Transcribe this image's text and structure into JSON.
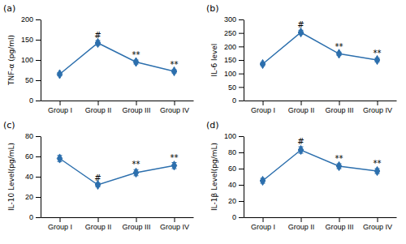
{
  "chart_data": [
    {
      "type": "line",
      "title": "(a)",
      "y_label": "TNF-α (pg/ml)",
      "categories": [
        "Group I",
        "Group II",
        "Group III",
        "Group IV"
      ],
      "values": [
        65,
        142,
        95,
        72
      ],
      "errors": [
        4,
        6,
        5,
        4
      ],
      "annotations": [
        null,
        "#",
        "**",
        "**"
      ],
      "color": "#2c6fad",
      "marker": "diamond",
      "ylim": [
        0,
        200
      ],
      "yticks": [
        0,
        50,
        100,
        150,
        200
      ]
    },
    {
      "type": "line",
      "title": "(b)",
      "y_label": "IL-6 level",
      "categories": [
        "Group I",
        "Group II",
        "Group III",
        "Group IV"
      ],
      "values": [
        135,
        252,
        173,
        150
      ],
      "errors": [
        6,
        8,
        6,
        7
      ],
      "annotations": [
        null,
        "#",
        "**",
        "**"
      ],
      "color": "#2c6fad",
      "marker": "diamond",
      "ylim": [
        0,
        300
      ],
      "yticks": [
        0,
        50,
        100,
        150,
        200,
        250,
        300
      ]
    },
    {
      "type": "line",
      "title": "(c)",
      "y_label": "IL-10 Level(pg/mL)",
      "categories": [
        "Group I",
        "Group II",
        "Group III",
        "Group IV"
      ],
      "values": [
        58,
        32,
        44,
        51
      ],
      "errors": [
        3,
        2,
        3,
        3
      ],
      "annotations": [
        null,
        "#",
        "**",
        "**"
      ],
      "color": "#2c6fad",
      "marker": "diamond",
      "ylim": [
        0,
        80
      ],
      "yticks": [
        0,
        20,
        40,
        60,
        80
      ]
    },
    {
      "type": "line",
      "title": "(d)",
      "y_label": "IL-1β Level(pg/mL)",
      "categories": [
        "Group I",
        "Group II",
        "Group III",
        "Group IV"
      ],
      "values": [
        45,
        83,
        63,
        57
      ],
      "errors": [
        3,
        4,
        3,
        3
      ],
      "annotations": [
        null,
        "#",
        "**",
        "**"
      ],
      "color": "#2c6fad",
      "marker": "diamond",
      "ylim": [
        0,
        100
      ],
      "yticks": [
        0,
        20,
        40,
        60,
        80,
        100
      ]
    }
  ]
}
